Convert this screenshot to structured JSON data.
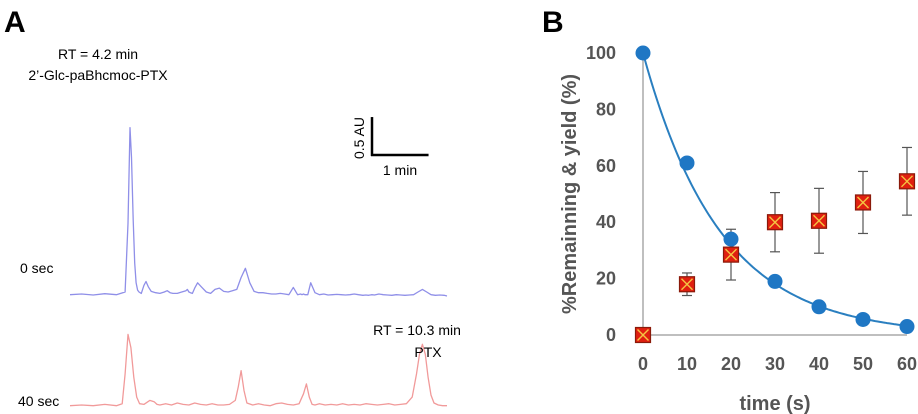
{
  "panels": [
    {
      "letter": "A"
    },
    {
      "letter": "B"
    }
  ],
  "chart_data": [
    {
      "type": "line",
      "panel": "A",
      "description_free": true,
      "x_unit": "min",
      "series": [
        {
          "name": "0 sec",
          "label": "0 sec",
          "color": "#8f8fe8",
          "x": [
            0,
            0.4,
            0.8,
            1.2,
            1.6,
            1.9,
            2.0,
            2.07,
            2.12,
            2.18,
            2.23,
            2.28,
            2.33,
            2.38,
            2.46,
            2.55,
            2.62,
            2.7,
            2.8,
            2.95,
            3.1,
            3.25,
            3.35,
            3.45,
            3.55,
            3.7,
            3.85,
            4.0,
            4.05,
            4.1,
            4.15,
            4.22,
            4.3,
            4.4,
            4.55,
            4.7,
            4.85,
            5.0,
            5.15,
            5.3,
            5.45,
            5.6,
            5.75,
            5.9,
            6.05,
            6.2,
            6.35,
            6.5,
            6.65,
            6.8,
            6.95,
            7.1,
            7.25,
            7.4,
            7.55,
            7.7,
            7.85,
            7.95,
            8.0,
            8.05,
            8.1,
            8.2,
            8.3,
            8.45,
            8.6,
            8.75,
            8.9,
            9.05,
            9.2,
            9.35,
            9.5,
            9.65,
            9.8,
            9.95,
            10.1,
            10.2,
            10.3,
            10.4,
            10.5,
            10.65,
            10.8,
            10.95,
            11.1,
            11.25,
            11.4,
            11.55,
            11.7,
            11.85,
            12.0,
            12.15,
            12.3,
            12.45,
            12.6,
            12.75,
            12.9,
            13.0
          ],
          "y": [
            0.02,
            0.03,
            0.015,
            0.035,
            0.02,
            0.06,
            1.1,
            2.55,
            2.1,
            1.15,
            0.5,
            0.2,
            0.09,
            0.06,
            0.04,
            0.16,
            0.22,
            0.14,
            0.07,
            0.05,
            0.04,
            0.06,
            0.08,
            0.05,
            0.04,
            0.04,
            0.06,
            0.08,
            0.1,
            0.06,
            0.05,
            0.04,
            0.12,
            0.2,
            0.13,
            0.06,
            0.04,
            0.1,
            0.12,
            0.07,
            0.06,
            0.08,
            0.1,
            0.28,
            0.42,
            0.2,
            0.07,
            0.05,
            0.05,
            0.04,
            0.03,
            0.03,
            0.04,
            0.03,
            0.02,
            0.13,
            0.02,
            0.03,
            0.02,
            0.03,
            0.02,
            0.02,
            0.2,
            0.05,
            0.02,
            0.03,
            0.015,
            0.02,
            0.025,
            0.02,
            0.015,
            0.02,
            0.03,
            0.02,
            0.01,
            0.015,
            0.01,
            0.02,
            0.015,
            0.03,
            0.02,
            0.015,
            0.01,
            0.02,
            0.015,
            0.01,
            0.015,
            0.02,
            0.06,
            0.1,
            0.06,
            0.02,
            0.01,
            0.015,
            0.01,
            0.0
          ]
        },
        {
          "name": "40 sec",
          "label": "40 sec",
          "color": "#f19a9a",
          "x": [
            0,
            0.4,
            0.8,
            1.2,
            1.6,
            1.8,
            1.9,
            2.0,
            2.1,
            2.2,
            2.3,
            2.4,
            2.55,
            2.75,
            2.9,
            3.0,
            3.1,
            3.3,
            3.5,
            3.7,
            3.9,
            4.1,
            4.3,
            4.5,
            4.7,
            4.9,
            5.1,
            5.3,
            5.5,
            5.7,
            5.8,
            5.9,
            6.0,
            6.1,
            6.3,
            6.5,
            6.7,
            6.9,
            7.1,
            7.3,
            7.5,
            7.7,
            7.9,
            8.05,
            8.15,
            8.25,
            8.35,
            8.45,
            8.6,
            8.8,
            9.0,
            9.2,
            9.4,
            9.6,
            9.8,
            10.0,
            10.2,
            10.4,
            10.6,
            10.8,
            11.0,
            11.2,
            11.4,
            11.6,
            11.8,
            11.95,
            12.05,
            12.15,
            12.25,
            12.35,
            12.45,
            12.55,
            12.7,
            12.85,
            13.0
          ],
          "y": [
            0.02,
            0.03,
            0.02,
            0.04,
            0.02,
            0.05,
            0.5,
            1.1,
            0.9,
            0.45,
            0.15,
            0.05,
            0.04,
            0.1,
            0.08,
            0.04,
            0.03,
            0.05,
            0.03,
            0.06,
            0.04,
            0.03,
            0.06,
            0.04,
            0.03,
            0.05,
            0.03,
            0.03,
            0.04,
            0.1,
            0.3,
            0.55,
            0.25,
            0.06,
            0.03,
            0.05,
            0.03,
            0.02,
            0.05,
            0.06,
            0.04,
            0.03,
            0.05,
            0.2,
            0.35,
            0.15,
            0.04,
            0.03,
            0.05,
            0.03,
            0.04,
            0.03,
            0.05,
            0.03,
            0.04,
            0.03,
            0.05,
            0.04,
            0.03,
            0.04,
            0.05,
            0.03,
            0.04,
            0.05,
            0.15,
            0.5,
            0.8,
            0.95,
            0.8,
            0.45,
            0.18,
            0.06,
            0.03,
            0.02,
            0.02
          ]
        }
      ],
      "annotations": [
        {
          "text": "RT = 4.2 min",
          "target_series": "0 sec"
        },
        {
          "text": "2’-Glc-paBhcmoc-PTX",
          "target_series": "0 sec"
        },
        {
          "text": "RT = 10.3 min",
          "target_series": "40 sec"
        },
        {
          "text": "PTX",
          "target_series": "40 sec"
        }
      ],
      "scale_bar": {
        "y_label": "0.5 AU",
        "y_value": 0.5,
        "x_label": "1 min",
        "x_value": 1
      }
    },
    {
      "type": "scatter",
      "panel": "B",
      "xlabel": "time (s)",
      "ylabel": "%Remainning & yield (%)",
      "xlim": [
        0,
        60
      ],
      "ylim": [
        0,
        100
      ],
      "xticks": [
        0,
        10,
        20,
        30,
        40,
        50,
        60
      ],
      "yticks": [
        0,
        20,
        40,
        60,
        80,
        100
      ],
      "grid": false,
      "series": [
        {
          "name": "%Remaining",
          "marker": "circle",
          "color": "#1f77c4",
          "x": [
            0,
            10,
            20,
            30,
            40,
            50,
            60
          ],
          "y": [
            100,
            61,
            34,
            19,
            10,
            5.5,
            3
          ],
          "fit": {
            "type": "exponential_decay",
            "A": 100,
            "k": 0.057,
            "color": "#2a7fc0"
          }
        },
        {
          "name": "yield",
          "marker": "square-x",
          "color": "#e02010",
          "edge_color": "#8a1a0a",
          "x": [
            0,
            10,
            20,
            30,
            40,
            50,
            60
          ],
          "y": [
            0,
            18,
            28.5,
            40,
            40.5,
            47,
            54.5
          ],
          "err": [
            0,
            4,
            9,
            10.5,
            11.5,
            11,
            12
          ]
        }
      ]
    }
  ]
}
